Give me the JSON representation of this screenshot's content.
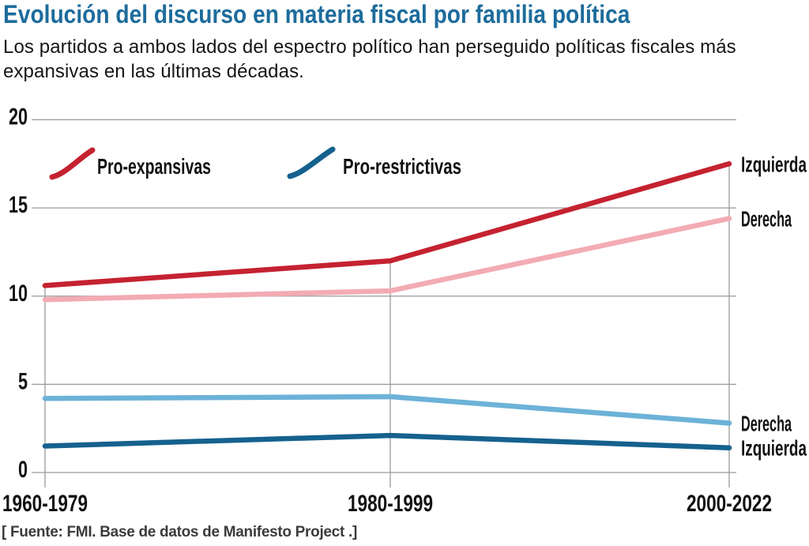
{
  "header": {
    "title": "Evolución del discurso en materia fiscal por familia política",
    "subtitle_lines": [
      "Los partidos a ambos lados del espectro político han perseguido políticas fiscales más",
      "expansivas en las últimas décadas."
    ]
  },
  "footer": {
    "source": "[ Fuente: FMI. Base de datos de Manifesto Project .]"
  },
  "colors": {
    "title_blue": "#1d6c9c",
    "pro_expansivas": "#c52231",
    "pro_expansivas_light": "#f3abb4",
    "pro_restrictivas": "#15618e",
    "pro_restrictivas_light": "#6cb2d8",
    "grid": "#9a9a9a",
    "chart_text": "#121212",
    "source_text": "#3b3b3b"
  },
  "chart_data": {
    "type": "line",
    "categories": [
      "1960-1979",
      "1980-1999",
      "2000-2022"
    ],
    "yticks": [
      0,
      5,
      10,
      15,
      20
    ],
    "ylim": [
      0,
      20
    ],
    "grid": true,
    "legend": [
      {
        "label": "Pro-expansivas",
        "color_key": "pro_expansivas"
      },
      {
        "label": "Pro-restrictivas",
        "color_key": "pro_restrictivas"
      }
    ],
    "legend_position": "top-left-inside",
    "series": [
      {
        "name": "Pro-expansivas (Izquierda)",
        "end_label": "Izquierda",
        "color_key": "pro_expansivas",
        "values": [
          10.6,
          12.0,
          17.5
        ]
      },
      {
        "name": "Pro-expansivas (Derecha)",
        "end_label": "Derecha",
        "color_key": "pro_expansivas_light",
        "values": [
          9.8,
          10.3,
          14.4
        ]
      },
      {
        "name": "Pro-restrictivas (Derecha)",
        "end_label": "Derecha",
        "color_key": "pro_restrictivas_light",
        "values": [
          4.2,
          4.3,
          2.8
        ]
      },
      {
        "name": "Pro-restrictivas (Izquierda)",
        "end_label": "Izquierda",
        "color_key": "pro_restrictivas",
        "values": [
          1.5,
          2.1,
          1.4
        ]
      }
    ]
  }
}
